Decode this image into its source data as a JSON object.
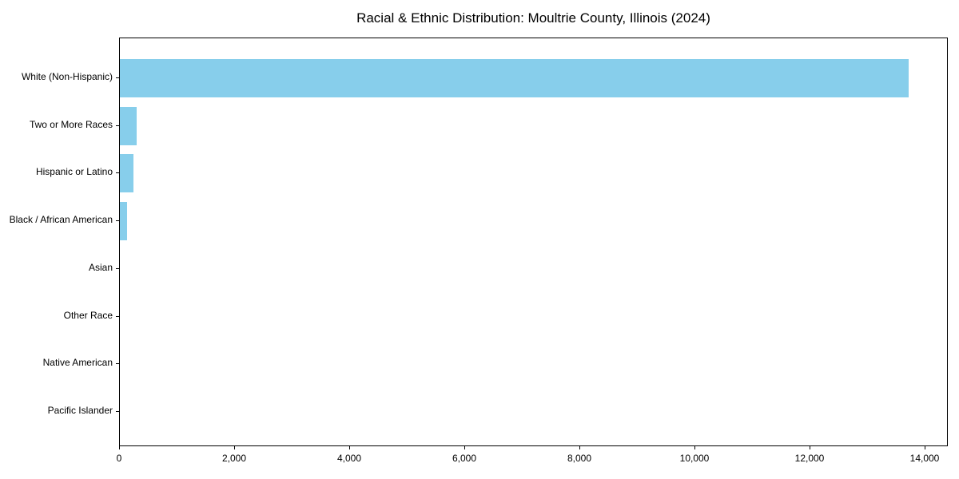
{
  "chart_data": {
    "type": "bar",
    "orientation": "horizontal",
    "title": "Racial & Ethnic Distribution: Moultrie County, Illinois (2024)",
    "categories": [
      "White (Non-Hispanic)",
      "Two or More Races",
      "Hispanic or Latino",
      "Black / African American",
      "Asian",
      "Other Race",
      "Native American",
      "Pacific Islander"
    ],
    "values": [
      13710,
      290,
      230,
      130,
      0,
      0,
      0,
      0
    ],
    "bar_color": "#87CEEB",
    "xlabel": "",
    "ylabel": "",
    "xlim": [
      0,
      14400
    ],
    "xticks": {
      "values": [
        0,
        2000,
        4000,
        6000,
        8000,
        10000,
        12000,
        14000
      ],
      "labels": [
        "0",
        "2,000",
        "4,000",
        "6,000",
        "8,000",
        "10,000",
        "12,000",
        "14,000"
      ]
    },
    "grid": false,
    "legend": null
  }
}
